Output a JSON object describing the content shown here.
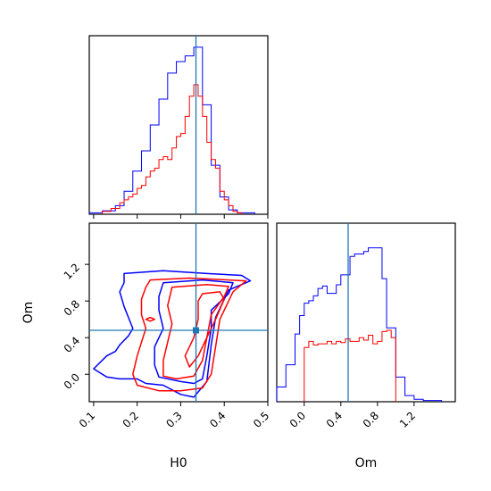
{
  "colors": {
    "blue": "#0000ff",
    "red": "#ff0000",
    "truth": "#1f77b4",
    "frame": "#000000"
  },
  "labels": {
    "h0": "H0",
    "om": "Om"
  },
  "chart_data": {
    "type": "corner",
    "parameters": [
      "H0",
      "Om"
    ],
    "truth": {
      "H0": 0.335,
      "Om": 0.48
    },
    "panels": [
      {
        "id": "h0-hist",
        "type": "histogram",
        "x": "H0",
        "xlim": [
          0.09,
          0.5
        ],
        "yticks_shown": false,
        "series": [
          {
            "color": "blue",
            "edges": [
              0.09,
              0.12,
              0.15,
              0.17,
              0.19,
              0.21,
              0.23,
              0.25,
              0.27,
              0.29,
              0.31,
              0.33,
              0.35,
              0.37,
              0.39,
              0.41,
              0.43,
              0.47
            ],
            "counts": [
              0.005,
              0.012,
              0.03,
              0.08,
              0.15,
              0.22,
              0.31,
              0.4,
              0.49,
              0.53,
              0.55,
              0.58,
              0.38,
              0.17,
              0.06,
              0.015,
              0.005
            ]
          },
          {
            "color": "red",
            "edges": [
              0.12,
              0.14,
              0.16,
              0.17,
              0.18,
              0.19,
              0.2,
              0.21,
              0.22,
              0.23,
              0.24,
              0.25,
              0.26,
              0.27,
              0.28,
              0.29,
              0.3,
              0.31,
              0.32,
              0.33,
              0.34,
              0.35,
              0.36,
              0.37,
              0.38,
              0.39,
              0.4,
              0.41,
              0.42,
              0.43,
              0.44
            ],
            "counts": [
              0.01,
              0.02,
              0.04,
              0.05,
              0.06,
              0.07,
              0.09,
              0.1,
              0.13,
              0.15,
              0.16,
              0.19,
              0.2,
              0.19,
              0.23,
              0.27,
              0.28,
              0.34,
              0.41,
              0.45,
              0.41,
              0.34,
              0.25,
              0.19,
              0.16,
              0.08,
              0.05,
              0.03,
              0.01,
              0.005
            ]
          }
        ]
      },
      {
        "id": "joint",
        "type": "contour",
        "x": "H0",
        "y": "Om",
        "xlim": [
          0.09,
          0.5
        ],
        "ylim": [
          -0.3,
          1.65
        ],
        "xticks": [
          0.1,
          0.2,
          0.3,
          0.4,
          0.5
        ],
        "yticks": [
          0.0,
          0.4,
          0.8,
          1.2
        ],
        "contours": [
          {
            "color": "blue",
            "points": [
              [
                0.17,
                1.1
              ],
              [
                0.26,
                1.13
              ],
              [
                0.36,
                1.1
              ],
              [
                0.44,
                1.08
              ],
              [
                0.46,
                1.02
              ],
              [
                0.41,
                0.92
              ],
              [
                0.38,
                0.62
              ],
              [
                0.37,
                0.32
              ],
              [
                0.36,
                -0.08
              ],
              [
                0.33,
                -0.25
              ],
              [
                0.3,
                -0.22
              ],
              [
                0.26,
                -0.12
              ],
              [
                0.22,
                -0.1
              ],
              [
                0.2,
                -0.05
              ],
              [
                0.16,
                -0.05
              ],
              [
                0.13,
                -0.03
              ],
              [
                0.1,
                0.06
              ],
              [
                0.13,
                0.2
              ],
              [
                0.15,
                0.25
              ],
              [
                0.16,
                0.32
              ],
              [
                0.18,
                0.42
              ],
              [
                0.19,
                0.5
              ],
              [
                0.18,
                0.62
              ],
              [
                0.17,
                0.74
              ],
              [
                0.16,
                0.9
              ],
              [
                0.17,
                1.0
              ]
            ]
          },
          {
            "color": "blue",
            "points": [
              [
                0.26,
                1.0
              ],
              [
                0.35,
                1.03
              ],
              [
                0.42,
                1.0
              ],
              [
                0.41,
                0.88
              ],
              [
                0.37,
                0.7
              ],
              [
                0.37,
                0.5
              ],
              [
                0.36,
                0.2
              ],
              [
                0.35,
                -0.05
              ],
              [
                0.33,
                -0.1
              ],
              [
                0.3,
                -0.08
              ],
              [
                0.25,
                -0.03
              ],
              [
                0.24,
                0.1
              ],
              [
                0.24,
                0.3
              ],
              [
                0.26,
                0.5
              ],
              [
                0.25,
                0.7
              ],
              [
                0.25,
                0.85
              ]
            ]
          },
          {
            "color": "red",
            "points": [
              [
                0.23,
                1.03
              ],
              [
                0.32,
                1.05
              ],
              [
                0.41,
                1.03
              ],
              [
                0.45,
                1.02
              ],
              [
                0.42,
                0.9
              ],
              [
                0.39,
                0.6
              ],
              [
                0.38,
                0.3
              ],
              [
                0.37,
                0.0
              ],
              [
                0.35,
                -0.15
              ],
              [
                0.3,
                -0.18
              ],
              [
                0.25,
                -0.18
              ],
              [
                0.2,
                -0.12
              ],
              [
                0.19,
                0.0
              ],
              [
                0.2,
                0.2
              ],
              [
                0.21,
                0.35
              ],
              [
                0.22,
                0.5
              ],
              [
                0.21,
                0.65
              ],
              [
                0.21,
                0.82
              ],
              [
                0.22,
                0.95
              ]
            ]
          },
          {
            "color": "red",
            "points": [
              [
                0.28,
                0.95
              ],
              [
                0.36,
                0.98
              ],
              [
                0.41,
                0.96
              ],
              [
                0.4,
                0.85
              ],
              [
                0.37,
                0.65
              ],
              [
                0.36,
                0.4
              ],
              [
                0.35,
                0.15
              ],
              [
                0.33,
                -0.02
              ],
              [
                0.29,
                -0.05
              ],
              [
                0.26,
                -0.02
              ],
              [
                0.26,
                0.15
              ],
              [
                0.27,
                0.35
              ],
              [
                0.28,
                0.55
              ],
              [
                0.27,
                0.75
              ]
            ]
          },
          {
            "color": "red",
            "points": [
              [
                0.35,
                0.88
              ],
              [
                0.39,
                0.9
              ],
              [
                0.4,
                0.82
              ],
              [
                0.38,
                0.6
              ],
              [
                0.36,
                0.4
              ],
              [
                0.34,
                0.2
              ],
              [
                0.32,
                0.08
              ],
              [
                0.31,
                0.2
              ],
              [
                0.33,
                0.4
              ],
              [
                0.34,
                0.6
              ],
              [
                0.34,
                0.8
              ]
            ]
          },
          {
            "color": "red",
            "points": [
              [
                0.22,
                0.6
              ],
              [
                0.23,
                0.62
              ],
              [
                0.24,
                0.6
              ],
              [
                0.23,
                0.58
              ]
            ]
          }
        ]
      },
      {
        "id": "om-hist",
        "type": "histogram",
        "x": "Om",
        "xlim": [
          -0.3,
          1.65
        ],
        "xticks": [
          0.0,
          0.4,
          0.8,
          1.2
        ],
        "yticks_shown": false,
        "series": [
          {
            "color": "blue",
            "edges": [
              -0.3,
              -0.2,
              -0.1,
              -0.05,
              0.0,
              0.05,
              0.1,
              0.15,
              0.2,
              0.25,
              0.3,
              0.35,
              0.4,
              0.45,
              0.5,
              0.55,
              0.6,
              0.65,
              0.7,
              0.75,
              0.8,
              0.85,
              0.9,
              1.0,
              1.1,
              1.2,
              1.3,
              1.5
            ],
            "counts": [
              0.12,
              0.3,
              0.55,
              0.7,
              0.8,
              0.82,
              0.86,
              0.92,
              0.94,
              0.88,
              0.88,
              0.95,
              1.03,
              1.03,
              1.18,
              1.2,
              1.2,
              1.22,
              1.25,
              1.25,
              1.25,
              1.0,
              0.6,
              0.2,
              0.05,
              0.02,
              0.01
            ]
          },
          {
            "color": "red",
            "edges": [
              0.0,
              0.05,
              0.1,
              0.15,
              0.2,
              0.25,
              0.3,
              0.35,
              0.4,
              0.45,
              0.5,
              0.55,
              0.6,
              0.65,
              0.7,
              0.75,
              0.8,
              0.85,
              0.9,
              0.95,
              1.0
            ],
            "counts": [
              0.44,
              0.49,
              0.46,
              0.47,
              0.47,
              0.49,
              0.47,
              0.49,
              0.48,
              0.51,
              0.49,
              0.49,
              0.52,
              0.5,
              0.54,
              0.47,
              0.49,
              0.57,
              0.58,
              0.52
            ]
          }
        ]
      }
    ]
  }
}
